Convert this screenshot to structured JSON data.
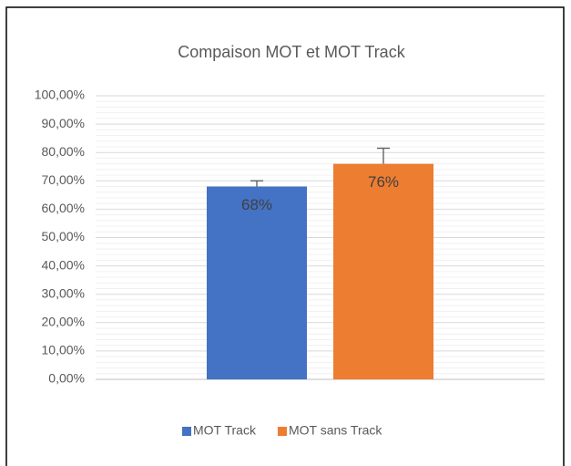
{
  "chart_data": {
    "type": "bar",
    "title": "Compaison MOT et MOT Track",
    "categories": [
      null
    ],
    "series": [
      {
        "name": "MOT Track",
        "color": "#4472c4",
        "values": [
          68
        ],
        "errors": [
          2
        ],
        "value_labels": [
          "68%"
        ]
      },
      {
        "name": "MOT sans Track",
        "color": "#ed7d31",
        "values": [
          76
        ],
        "errors": [
          5.5
        ],
        "value_labels": [
          "76%"
        ]
      }
    ],
    "ylim": [
      0,
      100
    ],
    "yticks": [
      {
        "value": 0,
        "label": "0,00%"
      },
      {
        "value": 10,
        "label": "10,00%"
      },
      {
        "value": 20,
        "label": "20,00%"
      },
      {
        "value": 30,
        "label": "30,00%"
      },
      {
        "value": 40,
        "label": "40,00%"
      },
      {
        "value": 50,
        "label": "50,00%"
      },
      {
        "value": 60,
        "label": "60,00%"
      },
      {
        "value": 70,
        "label": "70,00%"
      },
      {
        "value": 80,
        "label": "80,00%"
      },
      {
        "value": 90,
        "label": "90,00%"
      },
      {
        "value": 100,
        "label": "100,00%"
      }
    ],
    "grid": true,
    "minor_grid": true,
    "legend": "bottom"
  }
}
